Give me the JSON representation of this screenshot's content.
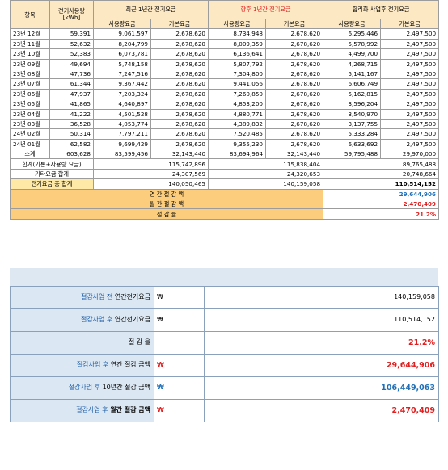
{
  "header": {
    "col_item": "항목",
    "col_usage": "전기사용량 [kWh]",
    "group1": "최근 1년간 전기요금",
    "group2": "향후 1년간 전기요금",
    "group3": "합리화 사업후 전기요금",
    "sub_usage_fee": "사용량요금",
    "sub_base_fee": "기본요금"
  },
  "rows": [
    {
      "m": "23년 12월",
      "u": "59,391",
      "a1": "9,061,597",
      "b1": "2,678,620",
      "a2": "8,734,948",
      "b2": "2,678,620",
      "a3": "6,295,446",
      "b3": "2,497,500"
    },
    {
      "m": "23년 11월",
      "u": "52,632",
      "a1": "8,204,799",
      "b1": "2,678,620",
      "a2": "8,009,359",
      "b2": "2,678,620",
      "a3": "5,578,992",
      "b3": "2,497,500"
    },
    {
      "m": "23년 10월",
      "u": "52,383",
      "a1": "6,073,781",
      "b1": "2,678,620",
      "a2": "6,136,641",
      "b2": "2,678,620",
      "a3": "4,499,700",
      "b3": "2,497,500"
    },
    {
      "m": "23년 09월",
      "u": "49,694",
      "a1": "5,748,158",
      "b1": "2,678,620",
      "a2": "5,807,792",
      "b2": "2,678,620",
      "a3": "4,268,715",
      "b3": "2,497,500"
    },
    {
      "m": "23년 08월",
      "u": "47,736",
      "a1": "7,247,516",
      "b1": "2,678,620",
      "a2": "7,304,800",
      "b2": "2,678,620",
      "a3": "5,141,167",
      "b3": "2,497,500"
    },
    {
      "m": "23년 07월",
      "u": "61,344",
      "a1": "9,367,442",
      "b1": "2,678,620",
      "a2": "9,441,056",
      "b2": "2,678,620",
      "a3": "6,606,749",
      "b3": "2,497,500"
    },
    {
      "m": "23년 06월",
      "u": "47,937",
      "a1": "7,203,324",
      "b1": "2,678,620",
      "a2": "7,260,850",
      "b2": "2,678,620",
      "a3": "5,162,815",
      "b3": "2,497,500"
    },
    {
      "m": "23년 05월",
      "u": "41,865",
      "a1": "4,640,897",
      "b1": "2,678,620",
      "a2": "4,853,200",
      "b2": "2,678,620",
      "a3": "3,596,204",
      "b3": "2,497,500"
    },
    {
      "m": "23년 04월",
      "u": "41,222",
      "a1": "4,501,528",
      "b1": "2,678,620",
      "a2": "4,880,771",
      "b2": "2,678,620",
      "a3": "3,540,970",
      "b3": "2,497,500"
    },
    {
      "m": "23년 03월",
      "u": "36,528",
      "a1": "4,053,774",
      "b1": "2,678,620",
      "a2": "4,389,832",
      "b2": "2,678,620",
      "a3": "3,137,755",
      "b3": "2,497,500"
    },
    {
      "m": "24년 02월",
      "u": "50,314",
      "a1": "7,797,211",
      "b1": "2,678,620",
      "a2": "7,520,485",
      "b2": "2,678,620",
      "a3": "5,333,284",
      "b3": "2,497,500"
    },
    {
      "m": "24년 01월",
      "u": "62,582",
      "a1": "9,699,429",
      "b1": "2,678,620",
      "a2": "9,355,230",
      "b2": "2,678,620",
      "a3": "6,633,692",
      "b3": "2,497,500"
    }
  ],
  "subtotal": {
    "label": "소계",
    "u": "603,628",
    "a1": "83,599,456",
    "b1": "32,143,440",
    "a2": "83,694,964",
    "b2": "32,143,440",
    "a3": "59,795,488",
    "b3": "29,970,000"
  },
  "sum": {
    "label": "합계(기본+사용량 요금)",
    "v1": "115,742,896",
    "v2": "115,838,404",
    "v3": "89,765,488"
  },
  "other": {
    "label": "기타요금 합계",
    "v1": "24,307,569",
    "v2": "24,320,653",
    "v3": "20,748,664"
  },
  "total": {
    "label": "전기요금 총 합계",
    "v1": "140,050,465",
    "v2": "140,159,058",
    "v3": "110,514,152"
  },
  "savings": {
    "annual_label": "연 간 절 감 액",
    "annual_value": "29,644,906",
    "monthly_label": "월 간 절 감 액",
    "monthly_value": "2,470,409",
    "rate_label": "절 감 율",
    "rate_value": "21.2%"
  },
  "summary": {
    "won": "₩",
    "before_hl": "절감사업 전",
    "before_rest": " 연간전기요금",
    "before_value": "140,159,058",
    "after_hl": "절감사업 후",
    "after_rest": " 연간전기요금",
    "after_value": "110,514,152",
    "rate_label": "절 감 율",
    "rate_value": "21.2%",
    "annual_hl": "절감사업 후",
    "annual_rest": " 연간 절감 금액",
    "annual_value": "29,644,906",
    "tenyear_hl": "절감사업 후",
    "tenyear_rest": " 10년간 절감 금액",
    "tenyear_value": "106,449,063",
    "monthly_hl": "절감사업 후",
    "monthly_rest": " 월간 절감 금액",
    "monthly_value": "2,470,409"
  },
  "colors": {
    "header_bg": "#fde8c4",
    "yellow": "#ffe9a6",
    "orange": "#fbcd7c",
    "blue_bg": "#dbe7f3",
    "red": "#e02020",
    "blue": "#1f70b8"
  }
}
